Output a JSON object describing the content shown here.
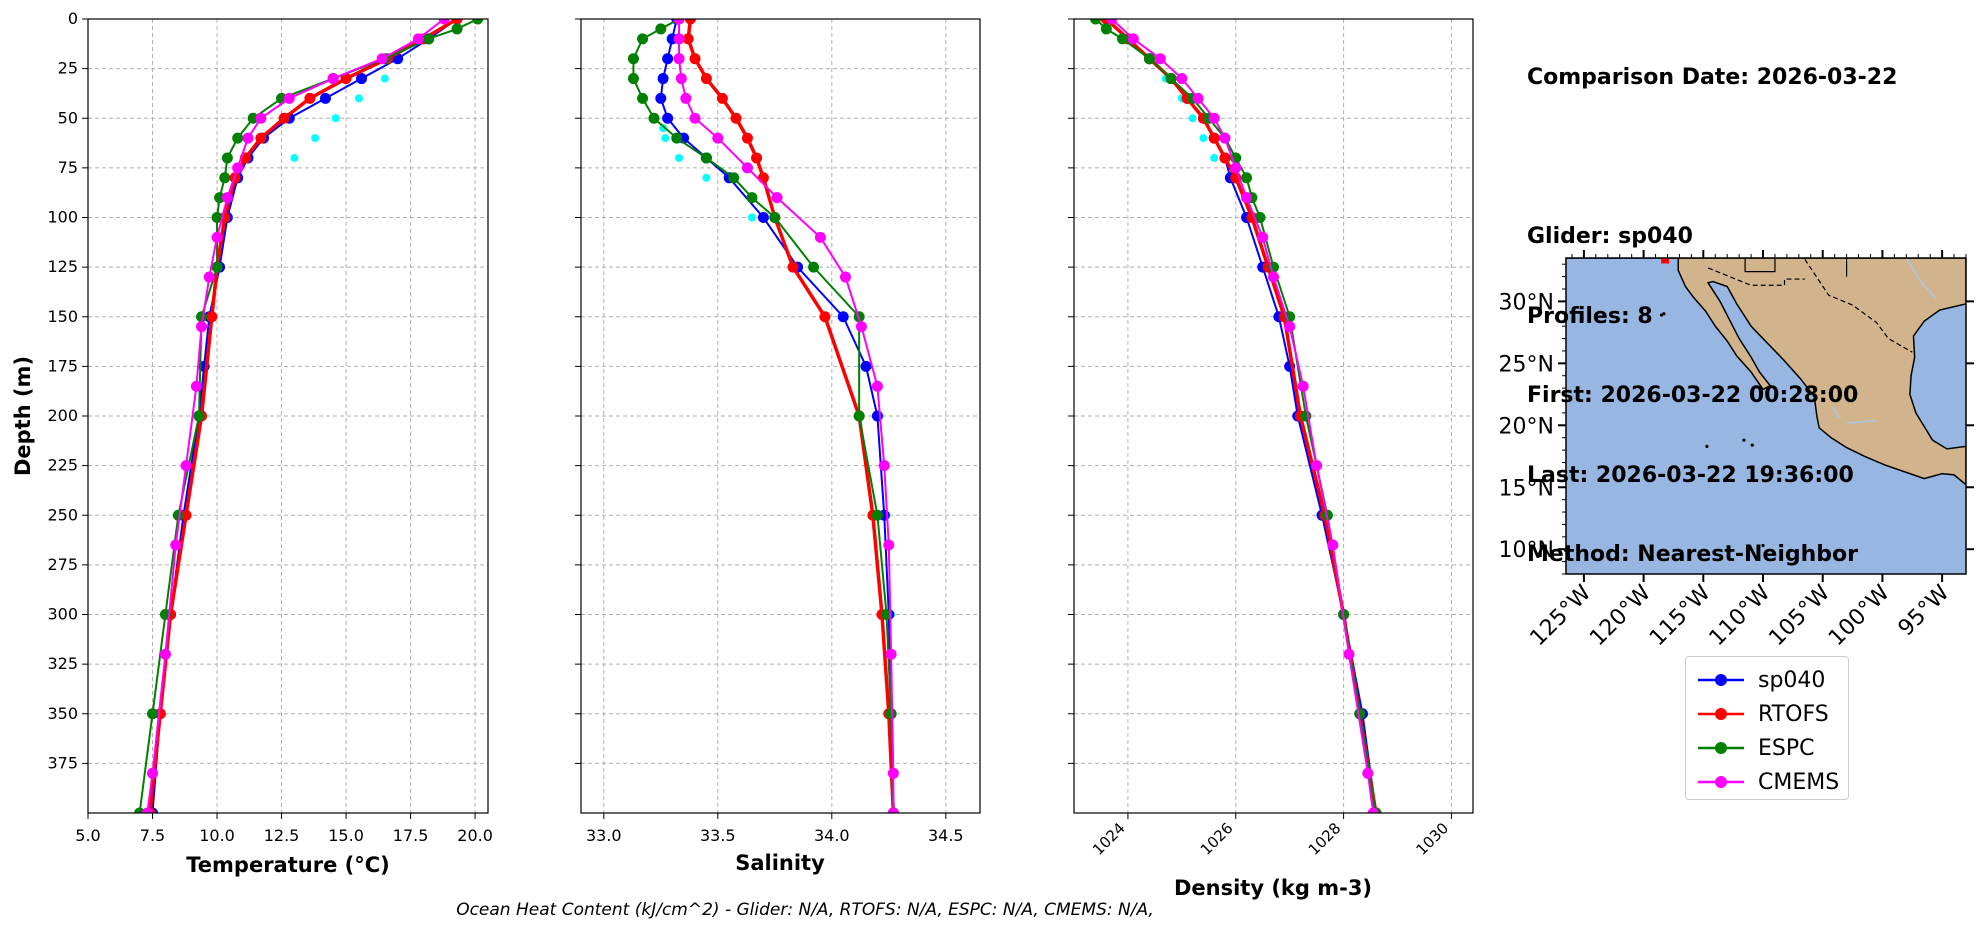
{
  "series": [
    {
      "name": "sp040",
      "color": "#0000ff"
    },
    {
      "name": "RTOFS",
      "color": "#ff0000"
    },
    {
      "name": "ESPC",
      "color": "#008000"
    },
    {
      "name": "CMEMS",
      "color": "#ff00ff"
    }
  ],
  "info": {
    "date_line": "Comparison Date: 2026-03-22",
    "glider_line": "Glider: sp040",
    "profiles_line": "Profiles: 8",
    "first_line": "First: 2026-03-22 00:28:00",
    "last_line": "Last: 2026-03-22 19:36:00",
    "method_line": "Method: Nearest-Neighbor"
  },
  "footer": "Ocean Heat Content (kJ/cm^2) - Glider: N/A,  RTOFS: N/A,  ESPC: N/A,  CMEMS: N/A,",
  "colors": {
    "glider_cast": "#00ffff",
    "land": "#d2b48c",
    "ocean": "#97b6e1",
    "rivers": "#a6c8e8"
  },
  "chart_data": [
    {
      "type": "line",
      "xlabel": "Temperature (°C)",
      "ylabel": "Depth (m)",
      "xlim": [
        5.0,
        20.5
      ],
      "ylim": [
        400,
        0
      ],
      "xticks": [
        5.0,
        7.5,
        10.0,
        12.5,
        15.0,
        17.5,
        20.0
      ],
      "xtick_labels": [
        "5.0",
        "7.5",
        "10.0",
        "12.5",
        "15.0",
        "17.5",
        "20.0"
      ],
      "yticks": [
        0,
        25,
        50,
        75,
        100,
        125,
        150,
        175,
        200,
        225,
        250,
        275,
        300,
        325,
        350,
        375
      ],
      "grid": true,
      "series": [
        {
          "name": "sp040",
          "depth": [
            0,
            10,
            20,
            30,
            40,
            50,
            60,
            70,
            80,
            100,
            125,
            150,
            175,
            200,
            250,
            300,
            350,
            400
          ],
          "values": [
            19.3,
            18.2,
            17.0,
            15.6,
            14.2,
            12.8,
            11.8,
            11.2,
            10.8,
            10.4,
            10.1,
            9.7,
            9.5,
            9.3,
            8.7,
            8.2,
            7.8,
            7.5
          ]
        },
        {
          "name": "RTOFS",
          "depth": [
            0,
            10,
            20,
            30,
            40,
            50,
            60,
            70,
            80,
            100,
            125,
            150,
            200,
            250,
            300,
            350,
            400
          ],
          "values": [
            19.3,
            18.0,
            16.6,
            15.0,
            13.6,
            12.6,
            11.7,
            11.1,
            10.7,
            10.3,
            10.0,
            9.8,
            9.4,
            8.8,
            8.2,
            7.8,
            7.4
          ]
        },
        {
          "name": "ESPC",
          "depth": [
            0,
            5,
            10,
            20,
            30,
            40,
            50,
            60,
            70,
            80,
            90,
            100,
            125,
            150,
            200,
            250,
            300,
            350,
            400
          ],
          "values": [
            20.1,
            19.3,
            18.2,
            16.5,
            14.5,
            12.5,
            11.4,
            10.8,
            10.4,
            10.3,
            10.1,
            10.0,
            10.0,
            9.4,
            9.3,
            8.5,
            8.0,
            7.5,
            7.0
          ]
        },
        {
          "name": "CMEMS",
          "depth": [
            0,
            10,
            20,
            30,
            40,
            50,
            60,
            75,
            90,
            110,
            130,
            155,
            185,
            225,
            265,
            320,
            380,
            400
          ],
          "values": [
            18.8,
            17.8,
            16.4,
            14.5,
            12.8,
            11.7,
            11.2,
            10.8,
            10.4,
            10.0,
            9.7,
            9.4,
            9.2,
            8.8,
            8.4,
            8.0,
            7.5,
            7.3
          ]
        },
        {
          "name": "glider cast",
          "depth": [
            30,
            40,
            50,
            60,
            70
          ],
          "values": [
            16.5,
            15.5,
            14.6,
            13.8,
            13.0
          ]
        }
      ]
    },
    {
      "type": "line",
      "xlabel": "Salinity",
      "ylabel": "",
      "xlim": [
        32.9,
        34.65
      ],
      "ylim": [
        400,
        0
      ],
      "xticks": [
        33.0,
        33.5,
        34.0,
        34.5
      ],
      "xtick_labels": [
        "33.0",
        "33.5",
        "34.0",
        "34.5"
      ],
      "grid": true,
      "series": [
        {
          "name": "sp040",
          "depth": [
            0,
            10,
            20,
            30,
            40,
            50,
            60,
            70,
            80,
            100,
            125,
            150,
            175,
            200,
            250,
            300,
            350,
            400
          ],
          "values": [
            33.32,
            33.3,
            33.28,
            33.26,
            33.25,
            33.28,
            33.35,
            33.45,
            33.55,
            33.7,
            33.85,
            34.05,
            34.15,
            34.2,
            34.23,
            34.25,
            34.26,
            34.27
          ]
        },
        {
          "name": "RTOFS",
          "depth": [
            0,
            10,
            20,
            30,
            40,
            50,
            60,
            70,
            80,
            100,
            125,
            150,
            200,
            250,
            300,
            350,
            400
          ],
          "values": [
            33.38,
            33.37,
            33.4,
            33.45,
            33.52,
            33.58,
            33.63,
            33.67,
            33.7,
            33.75,
            33.83,
            33.97,
            34.12,
            34.18,
            34.22,
            34.25,
            34.27
          ]
        },
        {
          "name": "ESPC",
          "depth": [
            0,
            5,
            10,
            20,
            30,
            40,
            50,
            60,
            70,
            80,
            90,
            100,
            125,
            150,
            200,
            250,
            300,
            350,
            400
          ],
          "values": [
            33.33,
            33.25,
            33.17,
            33.13,
            33.13,
            33.17,
            33.22,
            33.32,
            33.45,
            33.57,
            33.65,
            33.75,
            33.92,
            34.12,
            34.12,
            34.2,
            34.24,
            34.26,
            34.27
          ]
        },
        {
          "name": "CMEMS",
          "depth": [
            0,
            10,
            20,
            30,
            40,
            50,
            60,
            75,
            90,
            110,
            130,
            155,
            185,
            225,
            265,
            320,
            380,
            400
          ],
          "values": [
            33.33,
            33.33,
            33.33,
            33.34,
            33.36,
            33.4,
            33.5,
            33.63,
            33.76,
            33.95,
            34.06,
            34.13,
            34.2,
            34.23,
            34.25,
            34.26,
            34.27,
            34.27
          ]
        },
        {
          "name": "glider cast",
          "depth": [
            50,
            55,
            60,
            70,
            80,
            100,
            150,
            200,
            250,
            300
          ],
          "values": [
            33.28,
            33.26,
            33.27,
            33.33,
            33.45,
            33.65,
            34.05,
            34.21,
            34.24,
            34.26
          ]
        }
      ]
    },
    {
      "type": "line",
      "xlabel": "Density (kg m-3)",
      "ylabel": "",
      "xlim": [
        1023.0,
        1030.4
      ],
      "ylim": [
        400,
        0
      ],
      "xticks": [
        1024,
        1026,
        1028,
        1030
      ],
      "xtick_labels": [
        "1024",
        "1026",
        "1028",
        "1030"
      ],
      "grid": true,
      "series": [
        {
          "name": "sp040",
          "depth": [
            0,
            10,
            20,
            30,
            40,
            50,
            60,
            70,
            80,
            100,
            125,
            150,
            175,
            200,
            250,
            300,
            350,
            400
          ],
          "values": [
            1023.6,
            1024.0,
            1024.4,
            1024.8,
            1025.1,
            1025.4,
            1025.6,
            1025.8,
            1025.9,
            1026.2,
            1026.5,
            1026.8,
            1027.0,
            1027.15,
            1027.6,
            1028.0,
            1028.35,
            1028.6
          ]
        },
        {
          "name": "RTOFS",
          "depth": [
            0,
            10,
            20,
            30,
            40,
            50,
            60,
            70,
            80,
            100,
            125,
            150,
            200,
            250,
            300,
            350,
            400
          ],
          "values": [
            1023.6,
            1024.0,
            1024.4,
            1024.8,
            1025.1,
            1025.4,
            1025.6,
            1025.8,
            1026.0,
            1026.3,
            1026.6,
            1026.9,
            1027.2,
            1027.65,
            1028.0,
            1028.3,
            1028.6
          ]
        },
        {
          "name": "ESPC",
          "depth": [
            0,
            5,
            10,
            20,
            30,
            40,
            50,
            60,
            70,
            80,
            90,
            100,
            125,
            150,
            200,
            250,
            300,
            350,
            400
          ],
          "values": [
            1023.4,
            1023.6,
            1023.9,
            1024.4,
            1024.8,
            1025.2,
            1025.5,
            1025.8,
            1026.0,
            1026.2,
            1026.3,
            1026.45,
            1026.7,
            1027.0,
            1027.3,
            1027.7,
            1028.0,
            1028.3,
            1028.6
          ]
        },
        {
          "name": "CMEMS",
          "depth": [
            0,
            10,
            20,
            30,
            40,
            50,
            60,
            75,
            90,
            110,
            130,
            155,
            185,
            225,
            265,
            320,
            380,
            400
          ],
          "values": [
            1023.7,
            1024.1,
            1024.6,
            1025.0,
            1025.3,
            1025.6,
            1025.8,
            1026.0,
            1026.2,
            1026.5,
            1026.7,
            1027.0,
            1027.25,
            1027.5,
            1027.8,
            1028.1,
            1028.45,
            1028.55
          ]
        },
        {
          "name": "glider cast",
          "depth": [
            30,
            40,
            50,
            60,
            70
          ],
          "values": [
            1024.7,
            1025.0,
            1025.2,
            1025.4,
            1025.6
          ]
        }
      ]
    }
  ],
  "map": {
    "lat_labels": [
      "30°N",
      "25°N",
      "20°N",
      "15°N",
      "10°N"
    ],
    "lon_labels": [
      "125°W",
      "120°W",
      "115°W",
      "110°W",
      "105°W",
      "100°W",
      "95°W"
    ],
    "lon_range": [
      -126.5,
      -93.0
    ],
    "lat_range": [
      8.0,
      33.5
    ],
    "marker": {
      "lon": -118.2,
      "lat": 33.3
    }
  }
}
